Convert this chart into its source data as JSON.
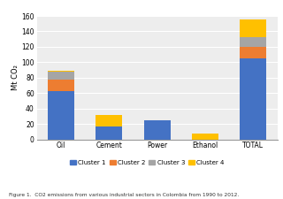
{
  "categories": [
    "Oil",
    "Cement",
    "Power",
    "Ethanol",
    "TOTAL"
  ],
  "cluster1": [
    63,
    17,
    25,
    0,
    105
  ],
  "cluster2": [
    14,
    0,
    0,
    0,
    15
  ],
  "cluster3": [
    11,
    0,
    0,
    0,
    13
  ],
  "cluster4": [
    1,
    14,
    0,
    7,
    22
  ],
  "colors": {
    "cluster1": "#4472C4",
    "cluster2": "#ED7D31",
    "cluster3": "#A5A5A5",
    "cluster4": "#FFC000"
  },
  "ylabel": "Mt CO₂",
  "ylim": [
    0,
    160
  ],
  "yticks": [
    0,
    20,
    40,
    60,
    80,
    100,
    120,
    140,
    160
  ],
  "legend_labels": [
    "Cluster 1",
    "Cluster 2",
    "Cluster 3",
    "Cluster 4"
  ],
  "caption": "Figure 1.  CO2 emissions from various industrial sectors in Colombia from 1990 to 2012.",
  "background_color": "#EDEDED",
  "plot_bg": "#FFFFFF",
  "bar_width": 0.55
}
